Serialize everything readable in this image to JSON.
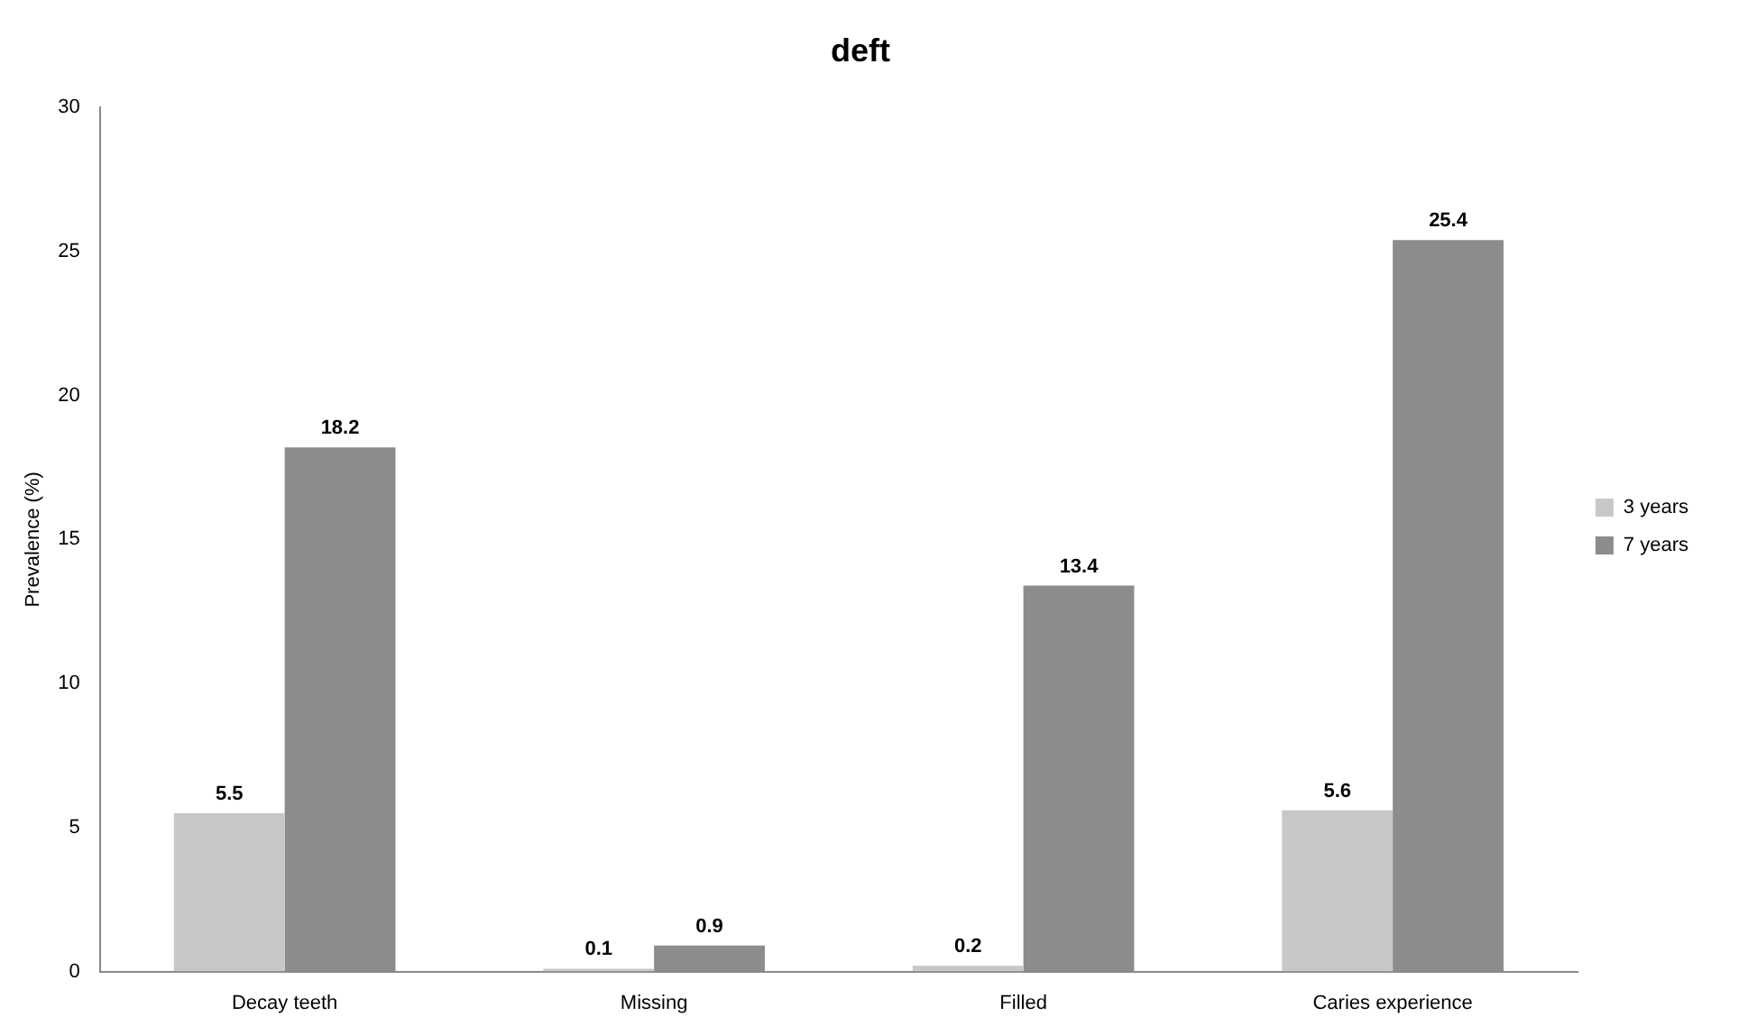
{
  "chart_data": {
    "type": "bar",
    "title": "deft",
    "ylabel": "Prevalence (%)",
    "categories": [
      "Decay teeth",
      "Missing",
      "Filled",
      "Caries experience"
    ],
    "series": [
      {
        "name": "3 years",
        "color": "#c8c8c8",
        "values": [
          5.5,
          0.1,
          0.2,
          5.6
        ]
      },
      {
        "name": "7 years",
        "color": "#8c8c8c",
        "values": [
          18.2,
          0.9,
          13.4,
          25.4
        ]
      }
    ],
    "ylim": [
      0,
      30
    ],
    "yticks": [
      0,
      5,
      10,
      15,
      20,
      25,
      30
    ],
    "grid": false,
    "legend": "right",
    "data_labels": true
  }
}
